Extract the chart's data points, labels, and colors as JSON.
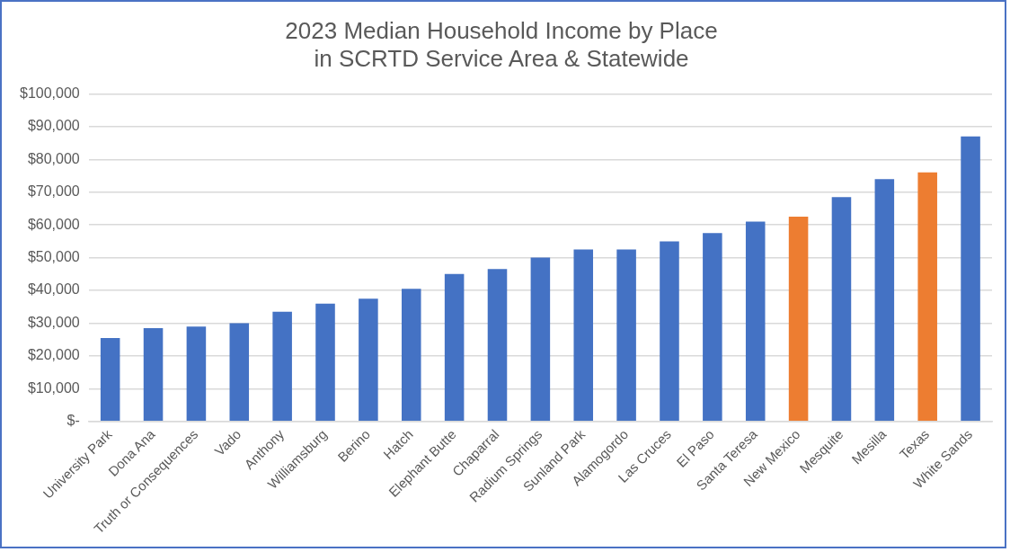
{
  "chart_data": {
    "type": "bar",
    "title": "2023 Median Household Income by Place\nin SCRTD Service Area & Statewide",
    "categories": [
      "University Park",
      "Dona Ana",
      "Truth or Consequences",
      "Vado",
      "Anthony",
      "Williamsburg",
      "Berino",
      "Hatch",
      "Elephant Butte",
      "Chaparral",
      "Radium Springs",
      "Sunland Park",
      "Alamogordo",
      "Las Cruces",
      "El Paso",
      "Santa Teresa",
      "New Mexico",
      "Mesquite",
      "Mesilla",
      "Texas",
      "White Sands"
    ],
    "values": [
      25500,
      28500,
      29000,
      30000,
      33500,
      36000,
      37500,
      40500,
      45000,
      46500,
      50000,
      52500,
      52500,
      55000,
      57500,
      61000,
      62500,
      68500,
      74000,
      76000,
      87000
    ],
    "colors": [
      "#4472c4",
      "#4472c4",
      "#4472c4",
      "#4472c4",
      "#4472c4",
      "#4472c4",
      "#4472c4",
      "#4472c4",
      "#4472c4",
      "#4472c4",
      "#4472c4",
      "#4472c4",
      "#4472c4",
      "#4472c4",
      "#4472c4",
      "#4472c4",
      "#ed7d31",
      "#4472c4",
      "#4472c4",
      "#ed7d31",
      "#4472c4"
    ],
    "ylim": [
      0,
      100000
    ],
    "yticks": [
      {
        "value": 0,
        "label": "$-"
      },
      {
        "value": 10000,
        "label": "$10,000"
      },
      {
        "value": 20000,
        "label": "$20,000"
      },
      {
        "value": 30000,
        "label": "$30,000"
      },
      {
        "value": 40000,
        "label": "$40,000"
      },
      {
        "value": 50000,
        "label": "$50,000"
      },
      {
        "value": 60000,
        "label": "$60,000"
      },
      {
        "value": 70000,
        "label": "$70,000"
      },
      {
        "value": 80000,
        "label": "$80,000"
      },
      {
        "value": 90000,
        "label": "$90,000"
      },
      {
        "value": 100000,
        "label": "$100,000"
      }
    ],
    "grid": "y",
    "legend": false
  }
}
